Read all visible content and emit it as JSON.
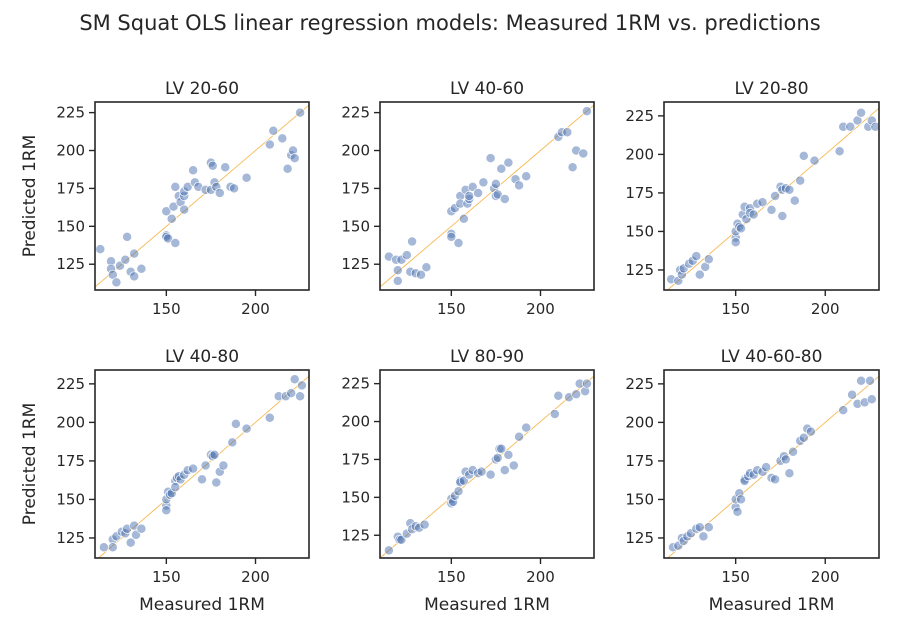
{
  "title": "SM Squat OLS linear regression models: Measured 1RM vs. predictions",
  "chart_data": [
    {
      "type": "scatter",
      "title": "LV 20-60",
      "xlabel": "",
      "ylabel": "Predicted 1RM",
      "xlim": [
        110,
        230
      ],
      "ylim": [
        108,
        232
      ],
      "xticks": [
        150,
        200
      ],
      "yticks": [
        125,
        150,
        175,
        200,
        225
      ],
      "reference_line": "y = x",
      "x": [
        113,
        119,
        119,
        120,
        122,
        124,
        127,
        128,
        130,
        132,
        132,
        136,
        150,
        150,
        150,
        151,
        153,
        154,
        155,
        155,
        157,
        158,
        160,
        160,
        160,
        162,
        165,
        166,
        168,
        172,
        175,
        175,
        176,
        177,
        178,
        180,
        183,
        186,
        188,
        195,
        208,
        210,
        215,
        218,
        220,
        221,
        222,
        225
      ],
      "y": [
        135,
        127,
        122,
        118,
        113,
        124,
        128,
        143,
        120,
        117,
        132,
        122,
        160,
        144,
        143,
        142,
        155,
        163,
        139,
        176,
        170,
        166,
        170,
        161,
        173,
        176,
        187,
        179,
        176,
        174,
        192,
        174,
        190,
        179,
        176,
        172,
        189,
        176,
        175,
        182,
        204,
        213,
        208,
        188,
        197,
        200,
        195,
        225
      ]
    },
    {
      "type": "scatter",
      "title": "LV 40-60",
      "xlabel": "",
      "ylabel": "",
      "xlim": [
        110,
        230
      ],
      "ylim": [
        108,
        232
      ],
      "xticks": [
        150,
        200
      ],
      "yticks": [
        125,
        150,
        175,
        200,
        225
      ],
      "reference_line": "y = x",
      "x": [
        115,
        119,
        120,
        120,
        122,
        125,
        127,
        128,
        130,
        133,
        136,
        150,
        150,
        150,
        152,
        154,
        155,
        155,
        157,
        158,
        159,
        160,
        160,
        162,
        165,
        168,
        172,
        174,
        175,
        175,
        176,
        178,
        180,
        182,
        186,
        188,
        192,
        210,
        212,
        215,
        218,
        220,
        224,
        226
      ],
      "y": [
        130,
        128,
        121,
        114,
        128,
        131,
        120,
        140,
        119,
        118,
        123,
        145,
        160,
        143,
        162,
        139,
        170,
        165,
        155,
        174,
        165,
        168,
        170,
        176,
        172,
        179,
        195,
        175,
        178,
        170,
        171,
        188,
        168,
        192,
        181,
        177,
        183,
        209,
        212,
        212,
        189,
        200,
        198,
        226
      ]
    },
    {
      "type": "scatter",
      "title": "LV 20-80",
      "xlabel": "",
      "ylabel": "",
      "xlim": [
        110,
        230
      ],
      "ylim": [
        112,
        234
      ],
      "xticks": [
        150,
        200
      ],
      "yticks": [
        125,
        150,
        175,
        200,
        225
      ],
      "reference_line": "y = x",
      "x": [
        114,
        118,
        119,
        120,
        121,
        124,
        126,
        128,
        130,
        133,
        135,
        150,
        150,
        150,
        151,
        152,
        153,
        154,
        155,
        156,
        158,
        158,
        160,
        162,
        165,
        170,
        172,
        175,
        176,
        176,
        178,
        180,
        183,
        186,
        188,
        194,
        208,
        210,
        214,
        218,
        220,
        224,
        226,
        228
      ],
      "y": [
        119,
        118,
        125,
        122,
        126,
        129,
        131,
        134,
        122,
        127,
        132,
        146,
        150,
        143,
        155,
        153,
        152,
        161,
        166,
        158,
        165,
        162,
        161,
        168,
        169,
        164,
        173,
        179,
        177,
        160,
        178,
        177,
        170,
        183,
        199,
        196,
        202,
        218,
        218,
        222,
        227,
        218,
        222,
        218
      ]
    },
    {
      "type": "scatter",
      "title": "LV 40-80",
      "xlabel": "Measured 1RM",
      "ylabel": "Predicted 1RM",
      "xlim": [
        110,
        230
      ],
      "ylim": [
        112,
        234
      ],
      "xticks": [
        150,
        200
      ],
      "yticks": [
        125,
        150,
        175,
        200,
        225
      ],
      "reference_line": "y = x",
      "x": [
        115,
        120,
        120,
        122,
        125,
        127,
        128,
        130,
        132,
        133,
        136,
        150,
        150,
        150,
        151,
        152,
        153,
        155,
        155,
        156,
        157,
        158,
        160,
        162,
        165,
        170,
        172,
        175,
        176,
        177,
        178,
        180,
        182,
        187,
        189,
        195,
        208,
        213,
        217,
        220,
        222,
        225,
        226
      ],
      "y": [
        119,
        124,
        119,
        126,
        129,
        128,
        131,
        122,
        133,
        127,
        131,
        146,
        150,
        143,
        155,
        153,
        154,
        162,
        158,
        164,
        165,
        163,
        166,
        169,
        170,
        163,
        172,
        179,
        178,
        179,
        161,
        168,
        172,
        187,
        199,
        196,
        203,
        217,
        217,
        219,
        228,
        217,
        224
      ]
    },
    {
      "type": "scatter",
      "title": "LV 80-90",
      "xlabel": "Measured 1RM",
      "ylabel": "",
      "xlim": [
        110,
        230
      ],
      "ylim": [
        110,
        234
      ],
      "xticks": [
        150,
        200
      ],
      "yticks": [
        125,
        150,
        175,
        200,
        225
      ],
      "reference_line": "y = x",
      "x": [
        115,
        120,
        121,
        122,
        125,
        127,
        128,
        130,
        132,
        135,
        150,
        150,
        151,
        152,
        154,
        155,
        155,
        157,
        158,
        160,
        162,
        165,
        167,
        172,
        175,
        176,
        177,
        178,
        180,
        182,
        185,
        188,
        192,
        208,
        210,
        216,
        220,
        222,
        225,
        226
      ],
      "y": [
        115,
        124,
        122,
        122,
        126,
        133,
        129,
        131,
        130,
        132,
        149,
        146,
        147,
        151,
        154,
        161,
        160,
        161,
        167,
        165,
        168,
        166,
        167,
        165,
        175,
        176,
        182,
        182,
        168,
        178,
        171,
        190,
        196,
        205,
        217,
        216,
        218,
        225,
        220,
        225
      ]
    },
    {
      "type": "scatter",
      "title": "LV 40-60-80",
      "xlabel": "Measured 1RM",
      "ylabel": "",
      "xlim": [
        110,
        230
      ],
      "ylim": [
        112,
        234
      ],
      "xticks": [
        150,
        200
      ],
      "yticks": [
        125,
        150,
        175,
        200,
        225
      ],
      "reference_line": "y = x",
      "x": [
        115,
        118,
        120,
        121,
        123,
        125,
        128,
        130,
        132,
        135,
        150,
        150,
        151,
        152,
        153,
        155,
        155,
        157,
        158,
        160,
        162,
        165,
        167,
        170,
        172,
        175,
        177,
        178,
        180,
        182,
        186,
        188,
        190,
        192,
        210,
        215,
        218,
        220,
        222,
        225,
        226
      ],
      "y": [
        119,
        120,
        125,
        123,
        126,
        128,
        131,
        132,
        126,
        132,
        145,
        150,
        142,
        154,
        150,
        163,
        162,
        165,
        167,
        166,
        169,
        168,
        171,
        164,
        163,
        175,
        178,
        176,
        167,
        181,
        188,
        190,
        196,
        194,
        208,
        218,
        212,
        227,
        213,
        227,
        215
      ]
    }
  ]
}
